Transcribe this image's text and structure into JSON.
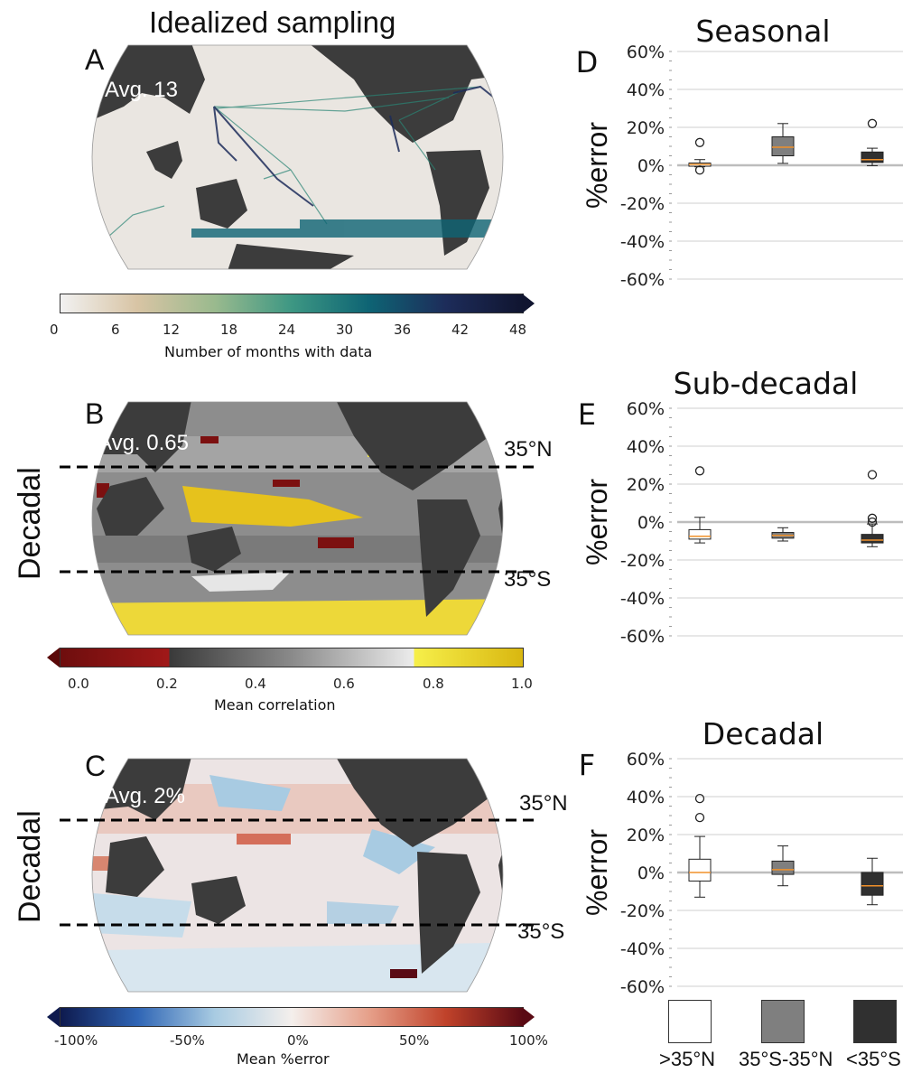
{
  "colors": {
    "land": "#3c3c3c",
    "ocean_sampling": "#ececec",
    "box_north": "#ffffff",
    "box_tropics": "#7f7f7f",
    "box_south": "#303030",
    "median": "#f0902a",
    "cmap_months": [
      "#f1f1f1",
      "#d8c4a4",
      "#9aba8e",
      "#3d9783",
      "#0e6474",
      "#1d2c5a",
      "#101530"
    ],
    "cmap_correlation": [
      "#6e0e0e",
      "#a01818",
      "#3a3a3a",
      "#8a8a8a",
      "#ececec",
      "#f6ef4a",
      "#d9b710"
    ],
    "cmap_error": [
      "#0e1a4e",
      "#2f65b5",
      "#a8cbe2",
      "#f4efec",
      "#e6a08a",
      "#c0422a",
      "#5a0a14"
    ]
  },
  "maps": [
    {
      "letter": "A",
      "title": "Idealized sampling",
      "side": "",
      "avg": "Avg. 13",
      "lat_n": "",
      "lat_s": "",
      "colorbar": {
        "ticks": [
          "0",
          "6",
          "12",
          "18",
          "24",
          "30",
          "36",
          "42",
          "48"
        ],
        "label": "Number of months with data"
      }
    },
    {
      "letter": "B",
      "title": "",
      "side": "Decadal",
      "avg": "Avg. 0.65",
      "lat_n": "35°N",
      "lat_s": "35°S",
      "colorbar": {
        "ticks": [
          "0.0",
          "0.2",
          "0.4",
          "0.6",
          "0.8",
          "1.0"
        ],
        "label": "Mean correlation"
      }
    },
    {
      "letter": "C",
      "title": "",
      "side": "Decadal",
      "avg": "Avg. 2%",
      "lat_n": "35°N",
      "lat_s": "35°S",
      "colorbar": {
        "ticks": [
          "-100%",
          "-50%",
          "0%",
          "50%",
          "100%"
        ],
        "label": "Mean %error"
      }
    }
  ],
  "legend": [
    {
      "label": ">35°N",
      "color": "#ffffff"
    },
    {
      "label": "35°S-35°N",
      "color": "#7f7f7f"
    },
    {
      "label": "<35°S",
      "color": "#303030"
    }
  ],
  "chart_data": [
    {
      "type": "box",
      "letter": "D",
      "title": "Seasonal",
      "ylabel": "%error",
      "ylim": [
        -0.6,
        0.6
      ],
      "yticks": [
        "60%",
        "40%",
        "20%",
        "0%",
        "-20%",
        "-40%",
        "-60%"
      ],
      "grid": true,
      "categories": [
        ">35°N",
        "35°S-35°N",
        "<35°S"
      ],
      "boxes": [
        {
          "q1": -0.005,
          "median": 0.005,
          "q3": 0.012,
          "whisker_low": -0.008,
          "whisker_high": 0.03,
          "outliers": [
            0.12,
            -0.025
          ]
        },
        {
          "q1": 0.05,
          "median": 0.095,
          "q3": 0.15,
          "whisker_low": 0.01,
          "whisker_high": 0.22,
          "outliers": []
        },
        {
          "q1": 0.015,
          "median": 0.03,
          "q3": 0.07,
          "whisker_low": -0.002,
          "whisker_high": 0.09,
          "outliers": [
            0.22
          ]
        }
      ]
    },
    {
      "type": "box",
      "letter": "E",
      "title": "Sub-decadal",
      "ylabel": "%error",
      "ylim": [
        -0.6,
        0.6
      ],
      "yticks": [
        "60%",
        "40%",
        "20%",
        "0%",
        "-20%",
        "-40%",
        "-60%"
      ],
      "grid": true,
      "categories": [
        ">35°N",
        "35°S-35°N",
        "<35°S"
      ],
      "boxes": [
        {
          "q1": -0.09,
          "median": -0.075,
          "q3": -0.04,
          "whisker_low": -0.11,
          "whisker_high": 0.025,
          "outliers": [
            0.27
          ]
        },
        {
          "q1": -0.085,
          "median": -0.07,
          "q3": -0.055,
          "whisker_low": -0.1,
          "whisker_high": -0.03,
          "outliers": []
        },
        {
          "q1": -0.11,
          "median": -0.095,
          "q3": -0.065,
          "whisker_low": -0.13,
          "whisker_high": -0.01,
          "outliers": [
            0.0,
            0.02,
            0.25
          ]
        }
      ]
    },
    {
      "type": "box",
      "letter": "F",
      "title": "Decadal",
      "ylabel": "%error",
      "ylim": [
        -0.6,
        0.6
      ],
      "yticks": [
        "60%",
        "40%",
        "20%",
        "0%",
        "-20%",
        "-40%",
        "-60%"
      ],
      "grid": true,
      "categories": [
        ">35°N",
        "35°S-35°N",
        "<35°S"
      ],
      "boxes": [
        {
          "q1": -0.045,
          "median": 0.0,
          "q3": 0.07,
          "whisker_low": -0.13,
          "whisker_high": 0.19,
          "outliers": [
            0.29,
            0.39
          ]
        },
        {
          "q1": -0.01,
          "median": 0.015,
          "q3": 0.06,
          "whisker_low": -0.07,
          "whisker_high": 0.14,
          "outliers": []
        },
        {
          "q1": -0.12,
          "median": -0.07,
          "q3": 0.0,
          "whisker_low": -0.17,
          "whisker_high": 0.075,
          "outliers": []
        }
      ]
    }
  ]
}
